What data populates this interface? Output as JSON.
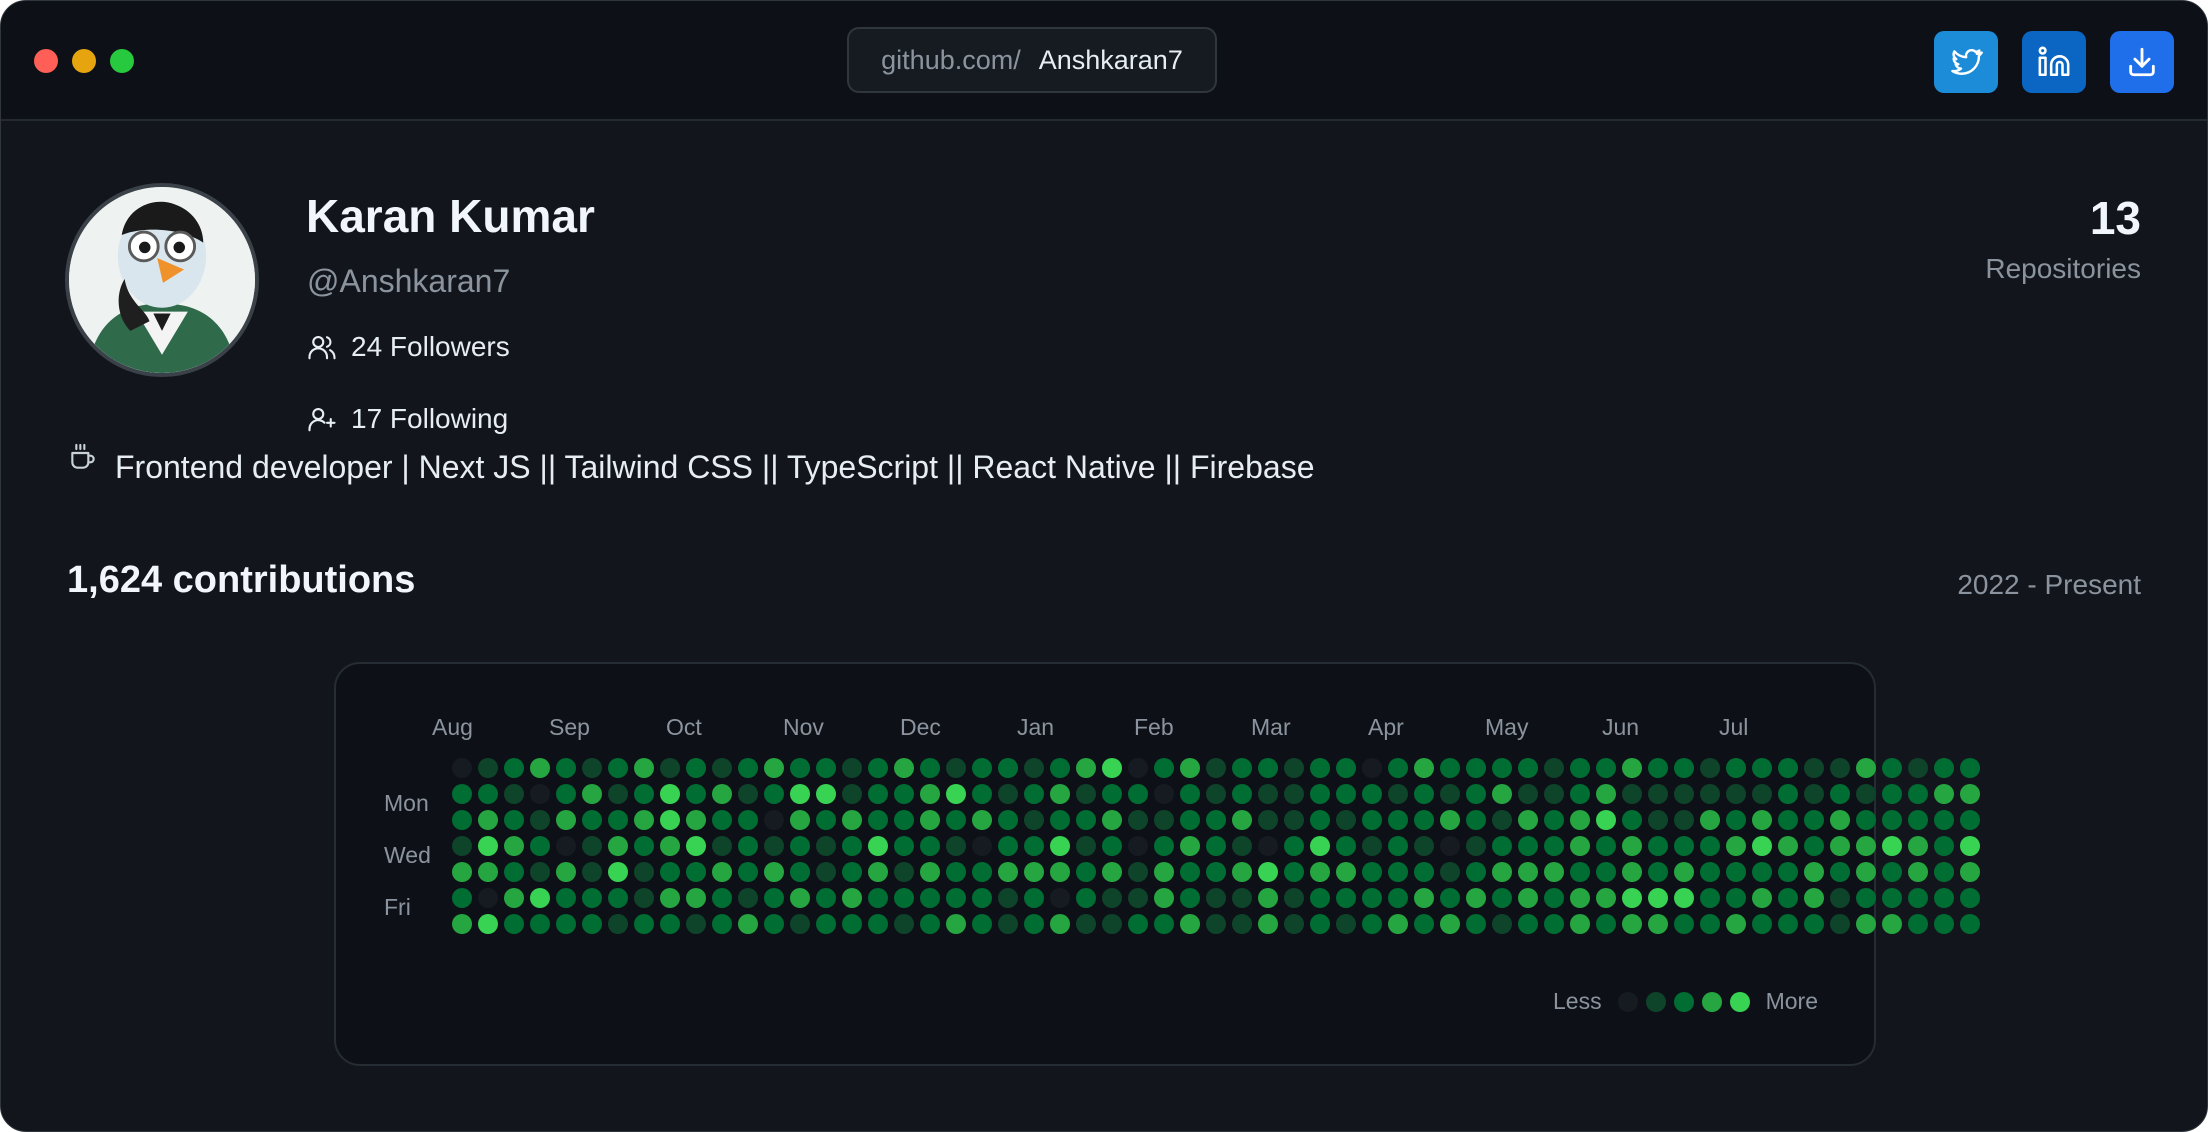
{
  "window": {
    "traffic_lights": [
      "close",
      "minimize",
      "zoom"
    ]
  },
  "url": {
    "prefix": "github.com/",
    "username": "Anshkaran7"
  },
  "social": [
    {
      "name": "twitter",
      "icon": "twitter-icon"
    },
    {
      "name": "linkedin",
      "icon": "linkedin-icon"
    },
    {
      "name": "download",
      "icon": "download-icon"
    }
  ],
  "profile": {
    "name": "Karan Kumar",
    "handle": "@Anshkaran7",
    "followers": "24 Followers",
    "following": "17 Following",
    "bio": "Frontend developer | Next JS || Tailwind CSS || TypeScript || React Native || Firebase",
    "repo_count": "13",
    "repo_label": "Repositories"
  },
  "contributions": {
    "title": "1,624 contributions",
    "range": "2022 - Present",
    "months": [
      "Aug",
      "Sep",
      "Oct",
      "Nov",
      "Dec",
      "Jan",
      "Feb",
      "Mar",
      "Apr",
      "May",
      "Jun",
      "Jul"
    ],
    "days": [
      "Mon",
      "Wed",
      "Fri"
    ],
    "legend_less": "Less",
    "legend_more": "More",
    "level_colors": [
      "#161b22",
      "#0e4429",
      "#006d32",
      "#26a641",
      "#39d353"
    ],
    "weeks": [
      [
        0,
        2,
        2,
        1,
        3,
        2,
        3
      ],
      [
        1,
        2,
        3,
        4,
        3,
        0,
        4
      ],
      [
        2,
        1,
        2,
        3,
        2,
        3,
        2
      ],
      [
        3,
        0,
        1,
        2,
        1,
        4,
        2
      ],
      [
        2,
        2,
        3,
        0,
        3,
        2,
        2
      ],
      [
        1,
        3,
        2,
        1,
        1,
        2,
        2
      ],
      [
        2,
        1,
        2,
        3,
        4,
        2,
        1
      ],
      [
        3,
        2,
        3,
        2,
        1,
        1,
        2
      ],
      [
        1,
        4,
        4,
        3,
        2,
        3,
        2
      ],
      [
        2,
        2,
        3,
        4,
        2,
        3,
        1
      ],
      [
        1,
        3,
        2,
        1,
        3,
        2,
        2
      ],
      [
        2,
        1,
        2,
        2,
        2,
        1,
        3
      ],
      [
        3,
        2,
        0,
        1,
        3,
        2,
        2
      ],
      [
        2,
        4,
        3,
        2,
        2,
        3,
        1
      ],
      [
        2,
        4,
        2,
        1,
        1,
        2,
        2
      ],
      [
        1,
        1,
        3,
        2,
        2,
        3,
        2
      ],
      [
        2,
        2,
        2,
        4,
        3,
        2,
        2
      ],
      [
        3,
        2,
        2,
        2,
        1,
        2,
        1
      ],
      [
        2,
        3,
        3,
        2,
        3,
        2,
        2
      ],
      [
        1,
        4,
        2,
        1,
        2,
        2,
        3
      ],
      [
        2,
        2,
        3,
        0,
        2,
        2,
        2
      ],
      [
        2,
        1,
        2,
        2,
        3,
        1,
        1
      ],
      [
        1,
        2,
        1,
        2,
        3,
        2,
        2
      ],
      [
        2,
        3,
        2,
        4,
        3,
        0,
        3
      ],
      [
        3,
        1,
        2,
        1,
        2,
        2,
        1
      ],
      [
        4,
        2,
        3,
        2,
        3,
        1,
        1
      ],
      [
        0,
        2,
        1,
        0,
        1,
        1,
        2
      ],
      [
        2,
        0,
        1,
        2,
        3,
        3,
        2
      ],
      [
        3,
        2,
        2,
        3,
        2,
        2,
        3
      ],
      [
        1,
        1,
        2,
        2,
        2,
        1,
        1
      ],
      [
        2,
        2,
        3,
        1,
        3,
        1,
        1
      ],
      [
        2,
        1,
        1,
        0,
        4,
        3,
        3
      ],
      [
        1,
        1,
        1,
        2,
        2,
        1,
        1
      ],
      [
        2,
        2,
        2,
        4,
        3,
        2,
        2
      ],
      [
        2,
        2,
        1,
        2,
        3,
        2,
        1
      ],
      [
        0,
        2,
        2,
        1,
        2,
        2,
        2
      ],
      [
        2,
        1,
        2,
        2,
        2,
        2,
        3
      ],
      [
        3,
        2,
        2,
        1,
        2,
        3,
        2
      ],
      [
        2,
        1,
        3,
        0,
        1,
        2,
        3
      ],
      [
        2,
        2,
        2,
        1,
        2,
        3,
        2
      ],
      [
        2,
        3,
        1,
        2,
        3,
        2,
        1
      ],
      [
        2,
        1,
        3,
        2,
        3,
        3,
        2
      ],
      [
        1,
        1,
        2,
        2,
        3,
        2,
        2
      ],
      [
        2,
        2,
        3,
        3,
        2,
        3,
        3
      ],
      [
        2,
        3,
        4,
        2,
        2,
        3,
        2
      ],
      [
        3,
        1,
        2,
        3,
        3,
        4,
        3
      ],
      [
        2,
        1,
        1,
        2,
        2,
        4,
        3
      ],
      [
        2,
        1,
        1,
        2,
        3,
        4,
        2
      ],
      [
        1,
        1,
        3,
        2,
        2,
        2,
        2
      ],
      [
        2,
        1,
        2,
        3,
        2,
        2,
        3
      ],
      [
        2,
        1,
        3,
        4,
        2,
        3,
        2
      ],
      [
        2,
        2,
        2,
        3,
        2,
        2,
        2
      ],
      [
        1,
        1,
        2,
        2,
        3,
        3,
        2
      ],
      [
        1,
        2,
        3,
        3,
        2,
        1,
        1
      ],
      [
        3,
        1,
        2,
        3,
        3,
        2,
        3
      ],
      [
        2,
        2,
        2,
        4,
        2,
        2,
        3
      ],
      [
        1,
        2,
        2,
        3,
        3,
        2,
        2
      ],
      [
        2,
        3,
        2,
        2,
        2,
        2,
        2
      ],
      [
        2,
        3,
        2,
        4,
        3,
        2,
        2
      ]
    ]
  }
}
